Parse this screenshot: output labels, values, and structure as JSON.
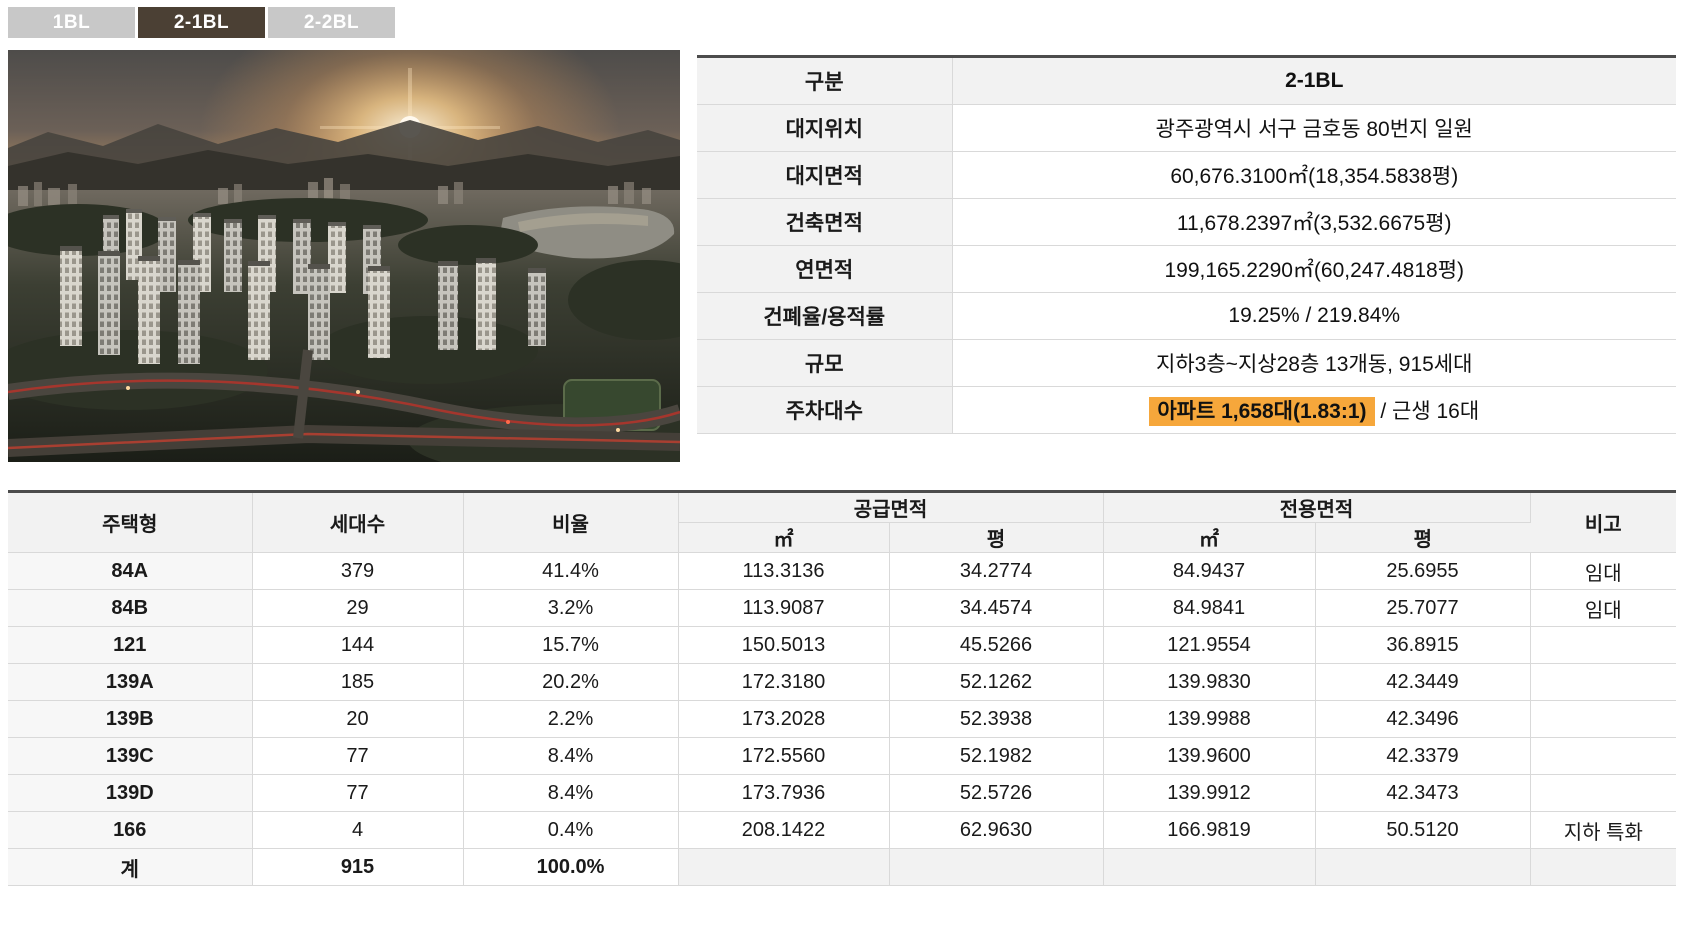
{
  "tabs": [
    {
      "label": "1BL",
      "active": false
    },
    {
      "label": "2-1BL",
      "active": true
    },
    {
      "label": "2-2BL",
      "active": false
    }
  ],
  "photo": {
    "description": "aerial sunset rendering of apartment complex"
  },
  "info_table": {
    "header_label": "구분",
    "header_value": "2-1BL",
    "rows": [
      {
        "label": "대지위치",
        "value": "광주광역시 서구 금호동 80번지 일원"
      },
      {
        "label": "대지면적",
        "value": "60,676.3100㎡(18,354.5838평)"
      },
      {
        "label": "건축면적",
        "value": "11,678.2397㎡(3,532.6675평)"
      },
      {
        "label": "연면적",
        "value": "199,165.2290㎡(60,247.4818평)"
      },
      {
        "label": "건폐율/용적률",
        "value": "19.25% / 219.84%"
      },
      {
        "label": "규모",
        "value": "지하3층~지상28층 13개동, 915세대"
      }
    ],
    "parking": {
      "label": "주차대수",
      "highlight": "아파트 1,658대(1.83:1)",
      "rest": " / 근생 16대"
    }
  },
  "unit_table": {
    "col_headers": {
      "type": "주택형",
      "households": "세대수",
      "ratio": "비율",
      "supply_area": "공급면적",
      "exclusive_area": "전용면적",
      "remark": "비고",
      "sqm": "㎡",
      "pyeong": "평"
    },
    "rows": [
      [
        "84A",
        "379",
        "41.4%",
        "113.3136",
        "34.2774",
        "84.9437",
        "25.6955",
        "임대"
      ],
      [
        "84B",
        "29",
        "3.2%",
        "113.9087",
        "34.4574",
        "84.9841",
        "25.7077",
        "임대"
      ],
      [
        "121",
        "144",
        "15.7%",
        "150.5013",
        "45.5266",
        "121.9554",
        "36.8915",
        ""
      ],
      [
        "139A",
        "185",
        "20.2%",
        "172.3180",
        "52.1262",
        "139.9830",
        "42.3449",
        ""
      ],
      [
        "139B",
        "20",
        "2.2%",
        "173.2028",
        "52.3938",
        "139.9988",
        "42.3496",
        ""
      ],
      [
        "139C",
        "77",
        "8.4%",
        "172.5560",
        "52.1982",
        "139.9600",
        "42.3379",
        ""
      ],
      [
        "139D",
        "77",
        "8.4%",
        "173.7936",
        "52.5726",
        "139.9912",
        "42.3473",
        ""
      ],
      [
        "166",
        "4",
        "0.4%",
        "208.1422",
        "62.9630",
        "166.9819",
        "50.5120",
        "지하 특화"
      ]
    ],
    "total_row": [
      "계",
      "915",
      "100.0%",
      "",
      "",
      "",
      "",
      ""
    ]
  },
  "colors": {
    "tab_active_bg": "#4B4034",
    "tab_inactive_bg": "#C8C8C8",
    "highlight": "#F6A73B",
    "header_bg": "#F2F2F2",
    "top_border": "#4C4C4C"
  }
}
